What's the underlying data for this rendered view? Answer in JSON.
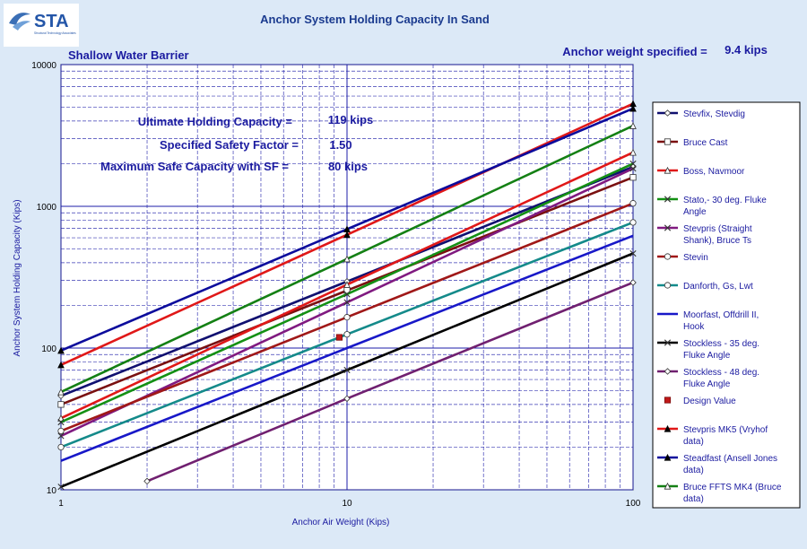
{
  "logo": {
    "text": "STA",
    "tagline": "Structural Technology Associates"
  },
  "annotations": {
    "location": "Shallow Water Barrier",
    "anchor_weight_label": "Anchor  weight specified  =",
    "anchor_weight_value": "9.4 kips",
    "uhc_label": "Ultimate Holding  Capacity  =",
    "uhc_value": "119 kips",
    "sf_label": "Specified Safety Factor  =",
    "sf_value": "1.50",
    "msc_label": "Maximum Safe Capacity with SF  =",
    "msc_value": "80 kips"
  },
  "colors": {
    "background": "#dce9f7",
    "plot_bg": "#ffffff",
    "grid": "#1a1aa8",
    "text": "#1b1ba0"
  },
  "chart_data": {
    "type": "line",
    "title": "Anchor System Holding Capacity In Sand",
    "xlabel": "Anchor Air Weight (Kips)",
    "ylabel": "Anchor System Holding Capacity (Kips)",
    "xscale": "log",
    "yscale": "log",
    "xlim": [
      1,
      100
    ],
    "ylim": [
      10,
      10000
    ],
    "xticks": [
      1,
      10,
      100
    ],
    "xtick_labels": [
      "1",
      "10",
      "100"
    ],
    "yticks": [
      10,
      100,
      1000,
      10000
    ],
    "ytick_labels": [
      "10",
      "100",
      "1000",
      "10000"
    ],
    "grid": true,
    "legend_position": "right",
    "series": [
      {
        "name": "Stevfix, Stevdig",
        "color": "#101070",
        "marker": "diamond",
        "x": [
          1,
          10,
          100
        ],
        "y": [
          46,
          295,
          1900
        ]
      },
      {
        "name": "Bruce Cast",
        "color": "#7a1010",
        "marker": "square",
        "x": [
          1,
          10,
          100
        ],
        "y": [
          40,
          255,
          1600
        ]
      },
      {
        "name": "Boss, Navmoor",
        "color": "#e01818",
        "marker": "triangle",
        "x": [
          1,
          10,
          100
        ],
        "y": [
          32,
          280,
          2400
        ]
      },
      {
        "name": "Stato,- 30 deg. Fluke Angle",
        "color": "#149014",
        "marker": "x",
        "x": [
          1,
          10,
          100
        ],
        "y": [
          30,
          240,
          2000
        ]
      },
      {
        "name": "Stevpris (Straight Shank), Bruce Ts",
        "color": "#801a80",
        "marker": "x",
        "x": [
          1,
          10,
          100
        ],
        "y": [
          24,
          210,
          1850
        ]
      },
      {
        "name": "Stevin",
        "color": "#a01818",
        "marker": "circle",
        "x": [
          1,
          10,
          100
        ],
        "y": [
          26,
          165,
          1050
        ]
      },
      {
        "name": "Danforth, Gs, Lwt",
        "color": "#148a8a",
        "marker": "circle",
        "x": [
          1,
          10,
          100
        ],
        "y": [
          20,
          125,
          770
        ]
      },
      {
        "name": "Moorfast, Offdrill II, Hook",
        "color": "#1818c8",
        "marker": "none",
        "x": [
          1,
          10,
          100
        ],
        "y": [
          16,
          100,
          620
        ]
      },
      {
        "name": "Stockless - 35 deg. Fluke Angle",
        "color": "#000000",
        "marker": "x",
        "x": [
          1,
          10,
          100
        ],
        "y": [
          10.5,
          70,
          465
        ]
      },
      {
        "name": "Stockless - 48 deg. Fluke Angle",
        "color": "#702070",
        "marker": "diamond",
        "x": [
          2,
          10,
          100
        ],
        "y": [
          11.5,
          44,
          290
        ]
      },
      {
        "name": "Design Value",
        "color": "#c01818",
        "marker": "square",
        "x": [
          9.4
        ],
        "y": [
          119
        ],
        "line": false
      },
      {
        "name": "Stevpris MK5 (Vryhof data)",
        "color": "#e01818",
        "marker": "triangle-filled",
        "x": [
          1,
          10,
          100
        ],
        "y": [
          76,
          630,
          5300
        ]
      },
      {
        "name": "Steadfast (Ansell Jones data)",
        "color": "#0c0c9c",
        "marker": "triangle-filled",
        "x": [
          1,
          10,
          100
        ],
        "y": [
          96,
          690,
          4900
        ]
      },
      {
        "name": "Bruce FFTS MK4 (Bruce data)",
        "color": "#148014",
        "marker": "triangle",
        "x": [
          1,
          10,
          100
        ],
        "y": [
          49,
          425,
          3700
        ]
      }
    ]
  }
}
